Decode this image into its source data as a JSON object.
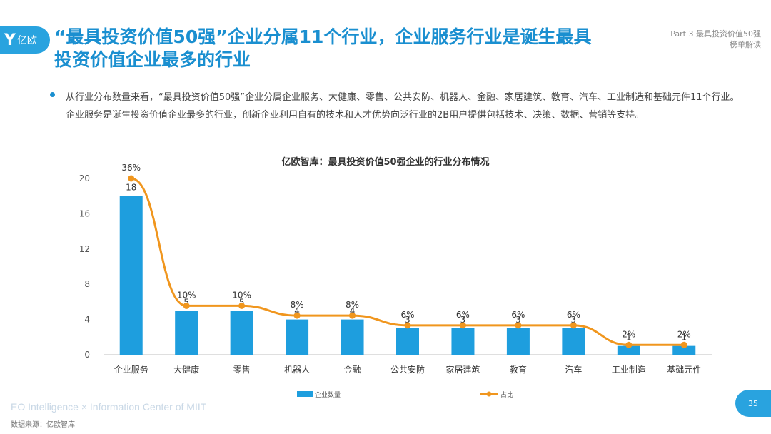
{
  "header": {
    "logo_text": "亿欧",
    "title": "“最具投资价值50强”企业分属11个行业，企业服务行业是诞生最具投资价值企业最多的行业",
    "part_line1": "Part 3 最具投资价值50强",
    "part_line2": "榜单解读"
  },
  "description": "从行业分布数量来看，“最具投资价值50强”企业分属企业服务、大健康、零售、公共安防、机器人、金融、家居建筑、教育、汽车、工业制造和基础元件11个行业。企业服务是诞生投资价值企业最多的行业，创新企业利用自有的技术和人才优势向泛行业的2B用户提供包括技术、决策、数据、营销等支持。",
  "footer": {
    "english": "EO Intelligence  ×  Information Center of MIIT",
    "source": "数据来源：亿欧智库",
    "page": "35"
  },
  "colors": {
    "accent": "#1a8fd0",
    "bar": "#1e9ede",
    "line": "#f0961e"
  },
  "chart_data": {
    "type": "bar",
    "title": "亿欧智库：最具投资价值50强企业的行业分布情况",
    "categories": [
      "企业服务",
      "大健康",
      "零售",
      "机器人",
      "金融",
      "公共安防",
      "家居建筑",
      "教育",
      "汽车",
      "工业制造",
      "基础元件"
    ],
    "series": [
      {
        "name": "企业数量",
        "type": "bar",
        "values": [
          18,
          5,
          5,
          4,
          4,
          3,
          3,
          3,
          3,
          1,
          1
        ]
      },
      {
        "name": "占比",
        "type": "line",
        "values": [
          36,
          10,
          10,
          8,
          8,
          6,
          6,
          6,
          6,
          2,
          2
        ],
        "labels": [
          "36%",
          "10%",
          "10%",
          "8%",
          "8%",
          "6%",
          "6%",
          "6%",
          "6%",
          "2%",
          "2%"
        ]
      }
    ],
    "yticks": [
      "0",
      "4",
      "8",
      "12",
      "16",
      "20"
    ],
    "ylim": [
      0,
      20
    ],
    "legend_position": "bottom",
    "grid": false
  }
}
